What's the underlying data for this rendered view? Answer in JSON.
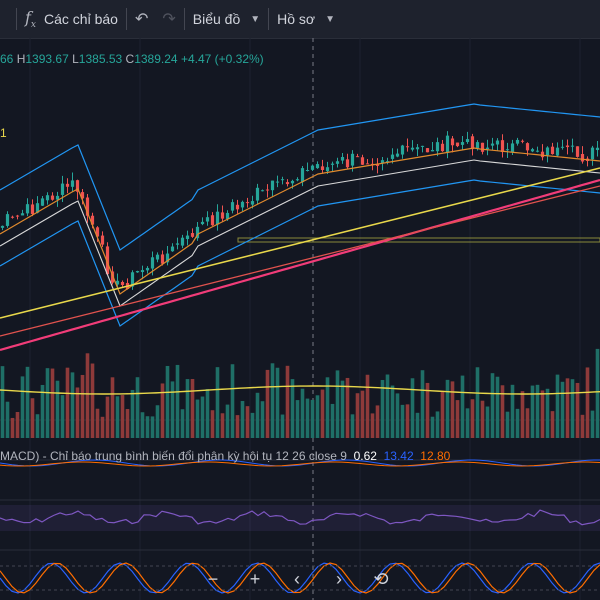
{
  "toolbar": {
    "indicators_label": "Các chỉ báo",
    "chart_menu_label": "Biểu đồ",
    "profile_menu_label": "Hồ sơ"
  },
  "ohlc": {
    "open_partial": "66",
    "high_key": "H",
    "high": "1393.67",
    "low_key": "L",
    "low": "1385.53",
    "close_key": "C",
    "close": "1389.24",
    "change": "+4.47 (+0.32%)"
  },
  "ma_label": "1",
  "macd": {
    "title": "MACD) - Chỉ báo trung bình biến đổi phân kỳ hội tụ",
    "params": "12 26 close 9",
    "hist": "0.62",
    "macd_value": "13.42",
    "signal_value": "12.80"
  },
  "colors": {
    "background": "#131722",
    "up": "#26a69a",
    "down": "#ef5350",
    "bollinger": "#2196f3",
    "ma_yellow": "#e9d84b",
    "ma_pink": "#f23c79",
    "rsi": "#7e57c2"
  },
  "icons": [
    "fx-icon",
    "undo-icon",
    "redo-icon",
    "chevron-down-icon",
    "zoom-out-icon",
    "zoom-in-icon",
    "scroll-left-icon",
    "scroll-right-icon",
    "reset-icon"
  ]
}
